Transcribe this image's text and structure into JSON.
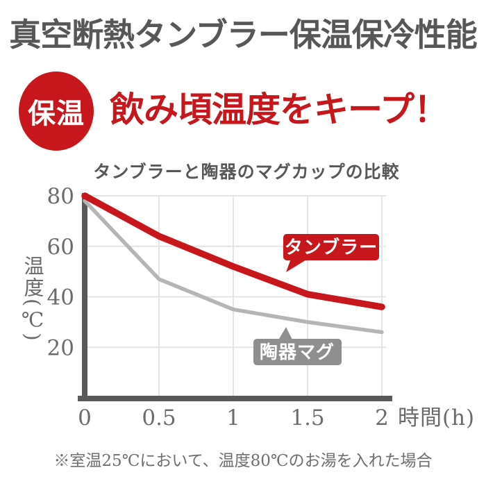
{
  "header": {
    "title": "真空断熱タンブラー保温保冷性能"
  },
  "hero": {
    "badge_label": "保温",
    "headline": "飲み頃温度をキープ！"
  },
  "chart": {
    "title": "タンブラーと陶器のマグカップの比較",
    "y_axis_label": "温度(℃)",
    "x_axis_label": "時間(h)",
    "y_ticks": [
      "80",
      "60",
      "40",
      "20"
    ],
    "x_ticks": [
      "0",
      "0.5",
      "1",
      "1.5",
      "2"
    ],
    "tumbler_label": "タンブラー",
    "ceramic_label": "陶器マグ"
  },
  "chart_data": {
    "type": "line",
    "title": "タンブラーと陶器のマグカップの比較",
    "xlabel": "時間(h)",
    "ylabel": "温度(℃)",
    "x": [
      0,
      0.5,
      1,
      1.5,
      2
    ],
    "series": [
      {
        "id": "tumbler",
        "name": "タンブラー",
        "color": "#c7161c",
        "values": [
          80,
          64,
          52,
          41,
          36
        ]
      },
      {
        "id": "ceramic-mug",
        "name": "陶器マグ",
        "color": "#b5b5b5",
        "values": [
          78,
          47,
          35,
          30,
          26
        ]
      }
    ],
    "ylim": [
      0,
      80
    ],
    "xlim": [
      0,
      2
    ],
    "y_gridlines": [
      80,
      60,
      40,
      20
    ],
    "x_gridlines": [
      0.5,
      1,
      1.5,
      2
    ],
    "grid": true,
    "legend_position": "inline-callouts"
  },
  "footnote": "※室温25℃において、温度80℃のお湯を入れた場合",
  "colors": {
    "accent_red": "#c7161c",
    "gray_line": "#b5b5b5",
    "gray_bubble": "#8f8f8f",
    "axis": "#595959",
    "grid": "#e4e4e4",
    "heading_text": "#575757",
    "tick_text": "#6b6b6b",
    "footnote_text": "#6e6e6e"
  }
}
